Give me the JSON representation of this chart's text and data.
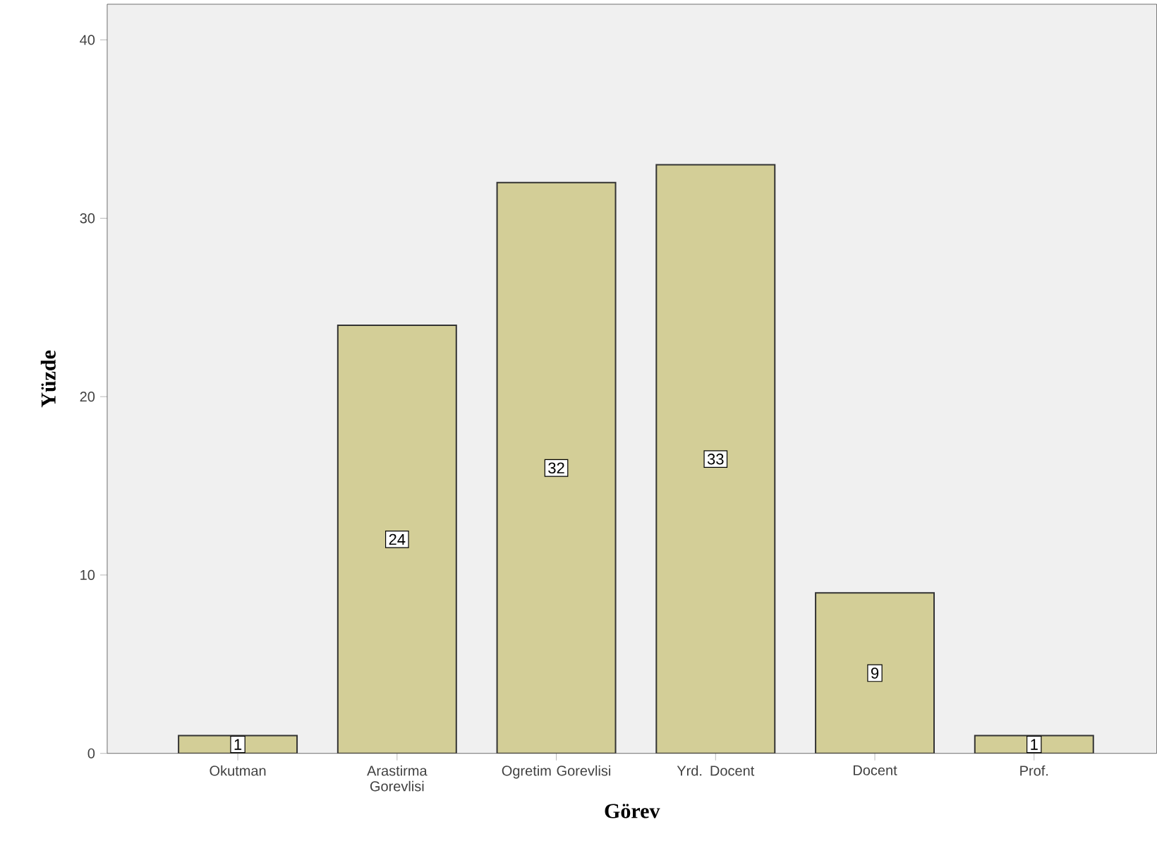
{
  "chart_data": {
    "type": "bar",
    "xlabel": "Görev",
    "ylabel": "Yüzde",
    "categories": [
      "Okutman",
      "Arastirma Gorevlisi",
      "Ogretim Gorevlisi",
      "Yrd. Docent",
      "Docent",
      "Prof."
    ],
    "values": [
      1,
      24,
      32,
      33,
      9,
      1
    ],
    "color": "#d3ce97",
    "ylim": [
      0,
      42
    ],
    "yticks": [
      0,
      10,
      20,
      30,
      40
    ],
    "data_labels": true,
    "grid": false
  }
}
